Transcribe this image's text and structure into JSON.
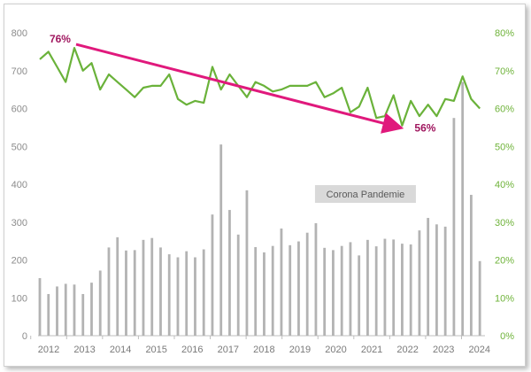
{
  "chart_data": {
    "type": "bar+line",
    "title": "",
    "xlabel": "",
    "ylabel_left": "",
    "ylabel_right": "",
    "x_ticks": [
      "2012",
      "2013",
      "2014",
      "2015",
      "2016",
      "2017",
      "2018",
      "2019",
      "2020",
      "2021",
      "2022",
      "2023",
      "2024"
    ],
    "y_left": {
      "min": 0,
      "max": 800,
      "ticks": [
        "0",
        "100",
        "200",
        "300",
        "400",
        "500",
        "600",
        "700",
        "800"
      ]
    },
    "y_right": {
      "min": 0,
      "max": 80,
      "ticks": [
        "0%",
        "10%",
        "20%",
        "30%",
        "40%",
        "50%",
        "60%",
        "70%",
        "80%"
      ]
    },
    "series": [
      {
        "type": "bar",
        "axis": "left",
        "color": "#b3b3b3",
        "values": [
          152,
          110,
          130,
          137,
          135,
          110,
          140,
          172,
          233,
          260,
          225,
          226,
          253,
          258,
          233,
          215,
          207,
          223,
          207,
          228,
          320,
          505,
          332,
          267,
          384,
          234,
          220,
          237,
          283,
          239,
          249,
          272,
          297,
          232,
          226,
          237,
          247,
          212,
          253,
          236,
          256,
          254,
          243,
          241,
          278,
          311,
          294,
          288,
          575,
          670,
          372,
          197
        ]
      },
      {
        "type": "line",
        "axis": "right",
        "color": "#6ab23a",
        "values": [
          73,
          75,
          71,
          67,
          76,
          70,
          72,
          65,
          69,
          67,
          65,
          63,
          65.5,
          66,
          66,
          69,
          62.5,
          61,
          62,
          61.5,
          71,
          65,
          69,
          66,
          63,
          67,
          66,
          64.5,
          65,
          66,
          66,
          66,
          67,
          63,
          64,
          65.5,
          59,
          60.5,
          65.5,
          57.5,
          58,
          63.5,
          55.5,
          62,
          58,
          61,
          58,
          62.5,
          62,
          68.5,
          62.5,
          60
        ]
      }
    ],
    "annotations": {
      "start_label": "76%",
      "end_label": "56%",
      "trend_color": "#e0197c",
      "pandemic_label": "Corona Pandemie"
    }
  }
}
